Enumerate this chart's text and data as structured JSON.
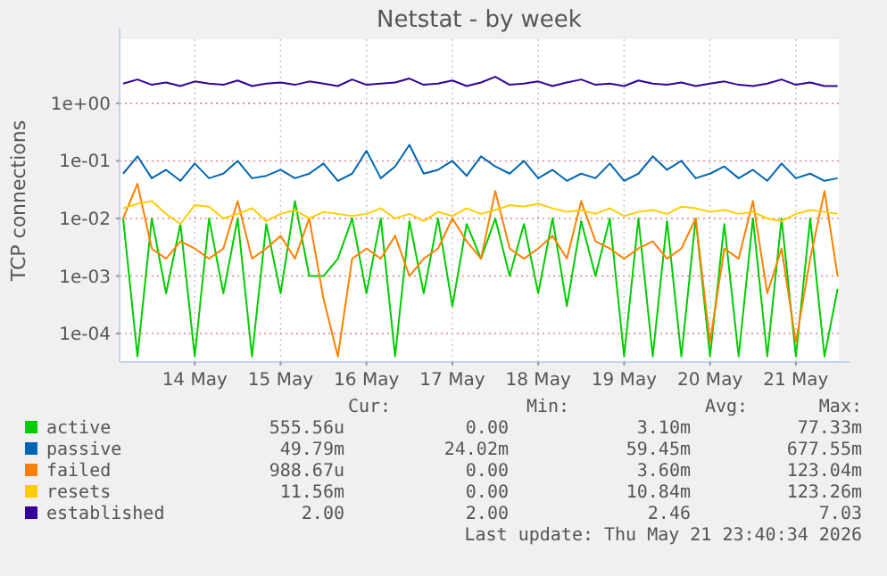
{
  "chart_data": {
    "type": "line",
    "title": "Netstat - by week",
    "ylabel": "TCP connections",
    "log": "y",
    "grid": true,
    "legend": "bottom",
    "line_style": "solid",
    "xlim": [
      "2026-05-13T15:00",
      "2026-05-22T00:00"
    ],
    "xticks": [
      {
        "value": "2026-05-14T12:00",
        "label": "14 May"
      },
      {
        "value": "2026-05-15T12:00",
        "label": "15 May"
      },
      {
        "value": "2026-05-16T12:00",
        "label": "16 May"
      },
      {
        "value": "2026-05-17T12:00",
        "label": "17 May"
      },
      {
        "value": "2026-05-18T12:00",
        "label": "18 May"
      },
      {
        "value": "2026-05-19T12:00",
        "label": "19 May"
      },
      {
        "value": "2026-05-20T12:00",
        "label": "20 May"
      },
      {
        "value": "2026-05-21T12:00",
        "label": "21 May"
      }
    ],
    "ylim": [
      3.2e-05,
      13
    ],
    "yticks": [
      {
        "value": 0.0001,
        "label": "1e-04"
      },
      {
        "value": 0.001,
        "label": "1e-03"
      },
      {
        "value": 0.01,
        "label": "1e-02"
      },
      {
        "value": 0.1,
        "label": "1e-01"
      },
      {
        "value": 1,
        "label": "1e+00"
      }
    ],
    "x": [
      "2026-05-13T16:00",
      "2026-05-13T20:00",
      "2026-05-14T00:00",
      "2026-05-14T04:00",
      "2026-05-14T08:00",
      "2026-05-14T12:00",
      "2026-05-14T16:00",
      "2026-05-14T20:00",
      "2026-05-15T00:00",
      "2026-05-15T04:00",
      "2026-05-15T08:00",
      "2026-05-15T12:00",
      "2026-05-15T16:00",
      "2026-05-15T20:00",
      "2026-05-16T00:00",
      "2026-05-16T04:00",
      "2026-05-16T08:00",
      "2026-05-16T12:00",
      "2026-05-16T16:00",
      "2026-05-16T20:00",
      "2026-05-17T00:00",
      "2026-05-17T04:00",
      "2026-05-17T08:00",
      "2026-05-17T12:00",
      "2026-05-17T16:00",
      "2026-05-17T20:00",
      "2026-05-18T00:00",
      "2026-05-18T04:00",
      "2026-05-18T08:00",
      "2026-05-18T12:00",
      "2026-05-18T16:00",
      "2026-05-18T20:00",
      "2026-05-19T00:00",
      "2026-05-19T04:00",
      "2026-05-19T08:00",
      "2026-05-19T12:00",
      "2026-05-19T16:00",
      "2026-05-19T20:00",
      "2026-05-20T00:00",
      "2026-05-20T04:00",
      "2026-05-20T08:00",
      "2026-05-20T12:00",
      "2026-05-20T16:00",
      "2026-05-20T20:00",
      "2026-05-21T00:00",
      "2026-05-21T04:00",
      "2026-05-21T08:00",
      "2026-05-21T12:00",
      "2026-05-21T16:00",
      "2026-05-21T20:00",
      "2026-05-21T23:40"
    ],
    "series": [
      {
        "name": "active",
        "color": "#00cc00",
        "values": [
          0.01,
          4e-05,
          0.01,
          0.0005,
          0.008,
          4e-05,
          0.01,
          0.0005,
          0.01,
          4e-05,
          0.008,
          0.0005,
          0.02,
          0.001,
          0.001,
          0.002,
          0.01,
          0.0005,
          0.01,
          4e-05,
          0.009,
          0.0005,
          0.01,
          0.0003,
          0.008,
          0.002,
          0.01,
          0.001,
          0.008,
          0.0005,
          0.01,
          0.0003,
          0.009,
          0.001,
          0.01,
          4e-05,
          0.01,
          4e-05,
          0.009,
          4e-05,
          0.01,
          4e-05,
          0.008,
          4e-05,
          0.01,
          4e-05,
          0.01,
          4e-05,
          0.01,
          4e-05,
          0.0006
        ]
      },
      {
        "name": "passive",
        "color": "#0066b3",
        "values": [
          0.06,
          0.12,
          0.05,
          0.07,
          0.045,
          0.09,
          0.05,
          0.06,
          0.1,
          0.05,
          0.055,
          0.07,
          0.05,
          0.06,
          0.09,
          0.045,
          0.06,
          0.15,
          0.05,
          0.08,
          0.19,
          0.06,
          0.07,
          0.1,
          0.055,
          0.12,
          0.08,
          0.06,
          0.1,
          0.05,
          0.07,
          0.045,
          0.06,
          0.05,
          0.09,
          0.045,
          0.06,
          0.12,
          0.07,
          0.1,
          0.05,
          0.06,
          0.08,
          0.05,
          0.07,
          0.045,
          0.09,
          0.05,
          0.06,
          0.045,
          0.05
        ]
      },
      {
        "name": "failed",
        "color": "#ff8000",
        "values": [
          0.01,
          0.04,
          0.003,
          0.002,
          0.004,
          0.003,
          0.002,
          0.003,
          0.02,
          0.002,
          0.003,
          0.005,
          0.002,
          0.01,
          0.0004,
          4e-05,
          0.002,
          0.003,
          0.002,
          0.005,
          0.001,
          0.002,
          0.003,
          0.01,
          0.004,
          0.002,
          0.03,
          0.003,
          0.002,
          0.003,
          0.005,
          0.002,
          0.02,
          0.004,
          0.003,
          0.002,
          0.003,
          0.004,
          0.002,
          0.003,
          0.01,
          7e-05,
          0.003,
          0.002,
          0.02,
          0.0005,
          0.003,
          7e-05,
          0.002,
          0.03,
          0.001
        ]
      },
      {
        "name": "resets",
        "color": "#ffcc00",
        "values": [
          0.015,
          0.018,
          0.02,
          0.012,
          0.008,
          0.017,
          0.016,
          0.01,
          0.012,
          0.015,
          0.009,
          0.012,
          0.014,
          0.01,
          0.013,
          0.012,
          0.011,
          0.012,
          0.015,
          0.01,
          0.012,
          0.009,
          0.013,
          0.011,
          0.015,
          0.012,
          0.014,
          0.017,
          0.016,
          0.018,
          0.015,
          0.013,
          0.014,
          0.012,
          0.015,
          0.011,
          0.013,
          0.014,
          0.012,
          0.016,
          0.015,
          0.013,
          0.014,
          0.012,
          0.013,
          0.01,
          0.009,
          0.012,
          0.014,
          0.013,
          0.012
        ]
      },
      {
        "name": "established",
        "color": "#330099",
        "values": [
          2.2,
          2.6,
          2.1,
          2.3,
          2.0,
          2.4,
          2.2,
          2.1,
          2.5,
          2.0,
          2.2,
          2.3,
          2.1,
          2.4,
          2.2,
          2.0,
          2.6,
          2.1,
          2.2,
          2.3,
          2.7,
          2.1,
          2.2,
          2.5,
          2.0,
          2.3,
          2.9,
          2.1,
          2.2,
          2.4,
          2.0,
          2.3,
          2.6,
          2.1,
          2.2,
          2.0,
          2.5,
          2.2,
          2.1,
          2.3,
          2.0,
          2.2,
          2.4,
          2.1,
          2.0,
          2.2,
          2.6,
          2.1,
          2.3,
          2.0,
          2.0
        ]
      }
    ],
    "annotations": [
      "Cur:",
      "Min:",
      "Avg:",
      "Max:",
      "555.56u",
      "0.00",
      "3.10m",
      "77.33m",
      "49.79m",
      "24.02m",
      "59.45m",
      "677.55m",
      "988.67u",
      "0.00",
      "3.60m",
      "123.04m",
      "11.56m",
      "0.00",
      "10.84m",
      "123.26m",
      "2.00",
      "2.00",
      "2.46",
      "7.03",
      "Last update: Thu May 21 23:40:34 2026"
    ]
  }
}
